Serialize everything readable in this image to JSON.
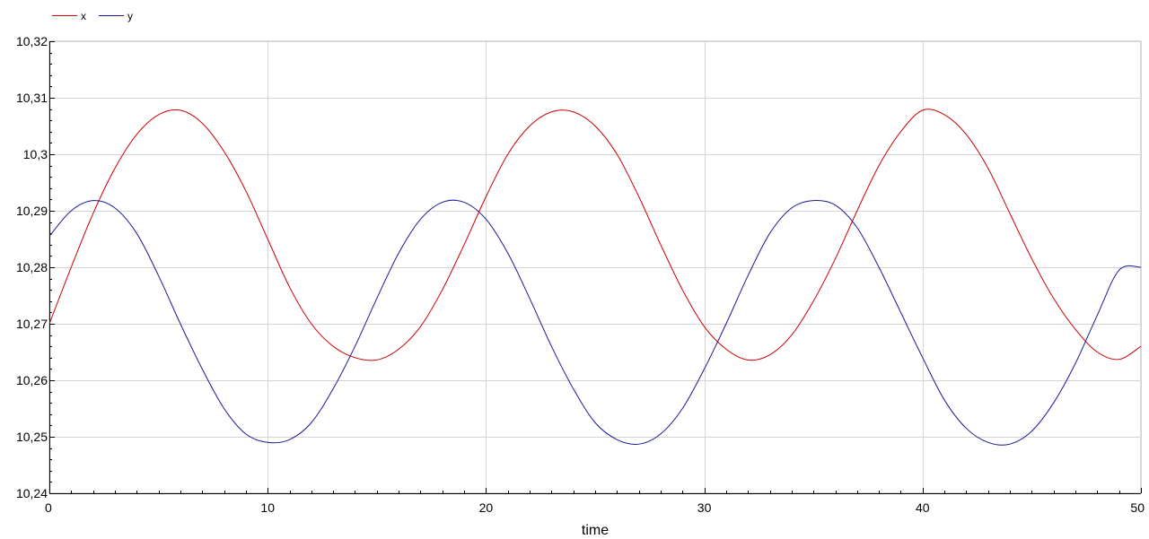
{
  "chart_data": {
    "type": "line",
    "title": "",
    "xlabel": "time",
    "ylabel": "",
    "xlim": [
      0,
      50
    ],
    "ylim": [
      10.24,
      10.32
    ],
    "grid": true,
    "legend_position": "top-left",
    "x_ticks": [
      0,
      10,
      20,
      30,
      40,
      50
    ],
    "x_tick_labels": [
      "0",
      "10",
      "20",
      "30",
      "40",
      "50"
    ],
    "y_ticks": [
      10.24,
      10.25,
      10.26,
      10.27,
      10.28,
      10.29,
      10.3,
      10.31,
      10.32
    ],
    "y_tick_labels": [
      "10,24",
      "10,25",
      "10,26",
      "10,27",
      "10,28",
      "10,29",
      "10,3",
      "10,31",
      "10,32"
    ],
    "x": [
      0,
      1,
      2,
      3,
      4,
      5,
      6,
      7,
      8,
      9,
      10,
      11,
      12,
      13,
      14,
      15,
      16,
      17,
      18,
      19,
      20,
      21,
      22,
      23,
      24,
      25,
      26,
      27,
      28,
      29,
      30,
      31,
      32,
      33,
      34,
      35,
      36,
      37,
      38,
      39,
      40,
      41,
      42,
      43,
      44,
      45,
      46,
      47,
      48,
      49,
      50
    ],
    "series": [
      {
        "name": "x",
        "color": "#cc0000",
        "values": [
          10.27,
          10.28,
          10.2895,
          10.2975,
          10.3035,
          10.307,
          10.3078,
          10.3055,
          10.3005,
          10.2935,
          10.285,
          10.2765,
          10.27,
          10.266,
          10.264,
          10.2636,
          10.2655,
          10.2695,
          10.276,
          10.284,
          10.2925,
          10.3,
          10.305,
          10.3075,
          10.3075,
          10.305,
          10.3,
          10.2925,
          10.284,
          10.276,
          10.2695,
          10.2655,
          10.2636,
          10.2645,
          10.268,
          10.274,
          10.2815,
          10.29,
          10.298,
          10.304,
          10.3078,
          10.307,
          10.3035,
          10.2975,
          10.2895,
          10.2815,
          10.2745,
          10.269,
          10.265,
          10.2637,
          10.266
        ]
      },
      {
        "name": "y",
        "color": "#1a1a99",
        "values": [
          10.2855,
          10.29,
          10.2918,
          10.2905,
          10.286,
          10.2785,
          10.27,
          10.262,
          10.255,
          10.2505,
          10.249,
          10.2495,
          10.2525,
          10.2585,
          10.266,
          10.2745,
          10.2825,
          10.2885,
          10.2915,
          10.2915,
          10.2885,
          10.2825,
          10.2745,
          10.266,
          10.2585,
          10.2525,
          10.2495,
          10.2487,
          10.2505,
          10.255,
          10.262,
          10.27,
          10.2785,
          10.286,
          10.2905,
          10.2918,
          10.291,
          10.287,
          10.28,
          10.272,
          10.264,
          10.2565,
          10.2515,
          10.249,
          10.2487,
          10.251,
          10.256,
          10.263,
          10.2715,
          10.2795,
          10.28
        ]
      }
    ]
  }
}
